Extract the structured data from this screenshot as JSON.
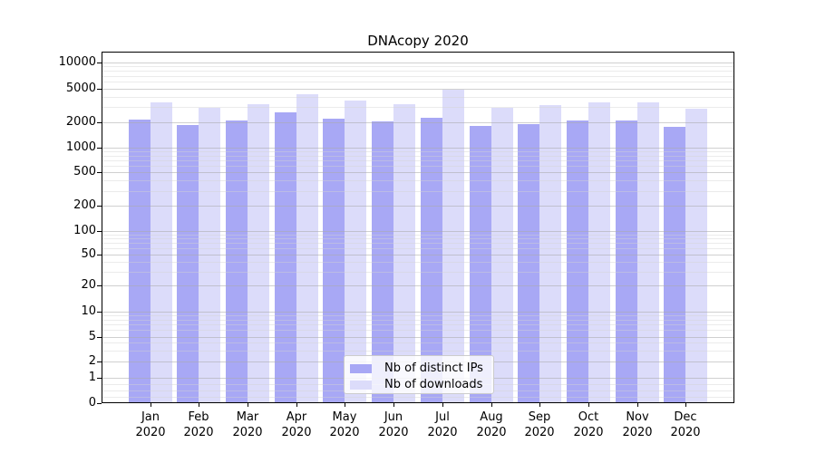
{
  "chart_data": {
    "type": "bar",
    "title": "DNAcopy 2020",
    "year": "2020",
    "categories": [
      "Jan",
      "Feb",
      "Mar",
      "Apr",
      "May",
      "Jun",
      "Jul",
      "Aug",
      "Sep",
      "Oct",
      "Nov",
      "Dec"
    ],
    "series": [
      {
        "name": "Nb of distinct IPs",
        "color": "#a8a8f5",
        "values": [
          2150,
          1850,
          2100,
          2600,
          2200,
          2050,
          2250,
          1800,
          1900,
          2100,
          2100,
          1750
        ]
      },
      {
        "name": "Nb of downloads",
        "color": "#dcdcfa",
        "values": [
          3400,
          2950,
          3300,
          4300,
          3600,
          3300,
          4900,
          2950,
          3200,
          3450,
          3400,
          2900
        ]
      }
    ],
    "yscale": "symlog",
    "ylabel": "",
    "xlabel": "",
    "y_ticks": [
      10000,
      5000,
      2000,
      1000,
      500,
      200,
      100,
      50,
      20,
      10,
      5,
      2,
      1,
      0
    ],
    "ylim": [
      0,
      12000
    ],
    "grid": "on",
    "legend_position": "lower-center",
    "colors": {
      "bar_distinct_ips": "#a8a8f5",
      "bar_downloads": "#dcdcfa",
      "grid_major": "#aaaaaa",
      "grid_minor": "#d2d2d2",
      "spine": "#000000",
      "legend_border": "#cccccc"
    }
  }
}
